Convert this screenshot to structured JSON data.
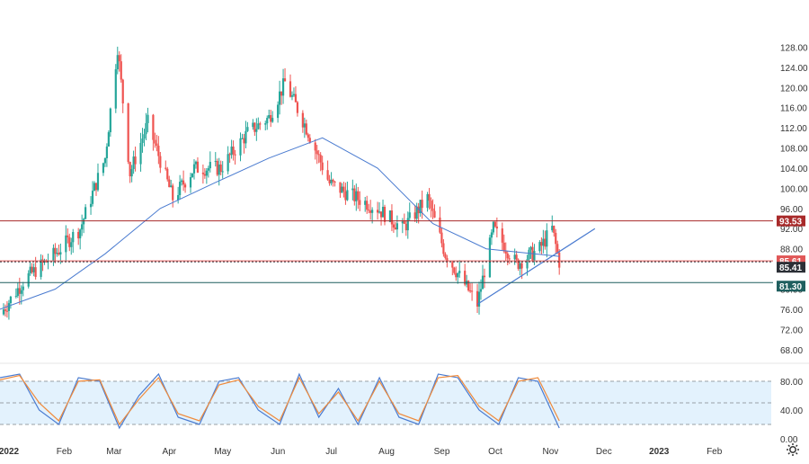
{
  "chart_data": [
    {
      "type": "candlestick",
      "panel": "price",
      "y_axis": {
        "min": 66,
        "max": 132,
        "ticks": [
          68,
          72,
          76,
          80,
          84,
          88,
          92,
          96,
          100,
          104,
          108,
          112,
          116,
          120,
          124,
          128
        ]
      },
      "x_axis_labels": [
        "2022",
        "Feb",
        "Mar",
        "Apr",
        "May",
        "Jun",
        "Jul",
        "Aug",
        "Sep",
        "Oct",
        "Nov",
        "Dec",
        "2023",
        "Feb"
      ],
      "series_close_approx": [
        {
          "date": "2022-01-01",
          "value": 75
        },
        {
          "date": "2022-01-15",
          "value": 82
        },
        {
          "date": "2022-02-01",
          "value": 87
        },
        {
          "date": "2022-02-15",
          "value": 92
        },
        {
          "date": "2022-03-01",
          "value": 106
        },
        {
          "date": "2022-03-08",
          "value": 128
        },
        {
          "date": "2022-03-15",
          "value": 103
        },
        {
          "date": "2022-03-25",
          "value": 113
        },
        {
          "date": "2022-04-08",
          "value": 98
        },
        {
          "date": "2022-04-20",
          "value": 104
        },
        {
          "date": "2022-05-05",
          "value": 104
        },
        {
          "date": "2022-05-20",
          "value": 111
        },
        {
          "date": "2022-06-01",
          "value": 114
        },
        {
          "date": "2022-06-10",
          "value": 121
        },
        {
          "date": "2022-06-22",
          "value": 112
        },
        {
          "date": "2022-07-05",
          "value": 101
        },
        {
          "date": "2022-07-15",
          "value": 99
        },
        {
          "date": "2022-08-01",
          "value": 96
        },
        {
          "date": "2022-08-15",
          "value": 92
        },
        {
          "date": "2022-08-29",
          "value": 98
        },
        {
          "date": "2022-09-08",
          "value": 87
        },
        {
          "date": "2022-09-26",
          "value": 77
        },
        {
          "date": "2022-10-05",
          "value": 92
        },
        {
          "date": "2022-10-18",
          "value": 85
        },
        {
          "date": "2022-10-31",
          "value": 88
        },
        {
          "date": "2022-11-07",
          "value": 92
        },
        {
          "date": "2022-11-11",
          "value": 85.41
        }
      ],
      "moving_average_approx": [
        {
          "date": "2022-01-01",
          "value": 76
        },
        {
          "date": "2022-02-01",
          "value": 80
        },
        {
          "date": "2022-03-01",
          "value": 87
        },
        {
          "date": "2022-04-01",
          "value": 96
        },
        {
          "date": "2022-05-01",
          "value": 101
        },
        {
          "date": "2022-06-01",
          "value": 106
        },
        {
          "date": "2022-07-01",
          "value": 110
        },
        {
          "date": "2022-08-01",
          "value": 104
        },
        {
          "date": "2022-09-01",
          "value": 93
        },
        {
          "date": "2022-10-01",
          "value": 88
        },
        {
          "date": "2022-11-11",
          "value": 86.5
        }
      ],
      "horizontal_levels": [
        {
          "value": 93.53,
          "label": "93.53",
          "color": "#a82a2a"
        },
        {
          "value": 85.61,
          "label": "85.61",
          "color": "#e05757"
        },
        {
          "value": 85.41,
          "label": "85.41",
          "color": "#2b2f36"
        },
        {
          "value": 81.3,
          "label": "81.30",
          "color": "#1f5f5f"
        }
      ],
      "trendline": {
        "from": {
          "date": "2022-09-26",
          "value": 77
        },
        "to": {
          "date": "2022-12-01",
          "value": 92
        }
      },
      "colors": {
        "up": "#26a69a",
        "down": "#ef5350",
        "ma": "#4a7bd0"
      },
      "grid": false
    },
    {
      "type": "line",
      "panel": "stochastic",
      "y_axis": {
        "min": 0,
        "max": 100,
        "ticks": [
          "80.00",
          "40.00",
          "0.00"
        ]
      },
      "bands": {
        "upper": 80,
        "middle": 50,
        "lower": 20
      },
      "series": [
        {
          "color": "#4a7bd0",
          "values": [
            85,
            90,
            40,
            20,
            85,
            80,
            15,
            60,
            90,
            30,
            20,
            80,
            85,
            40,
            20,
            90,
            30,
            70,
            20,
            85,
            30,
            20,
            90,
            85,
            40,
            20,
            85,
            80,
            15
          ]
        },
        {
          "color": "#f08a3a",
          "values": [
            82,
            88,
            50,
            25,
            80,
            82,
            20,
            55,
            85,
            35,
            25,
            75,
            82,
            45,
            25,
            85,
            35,
            65,
            25,
            80,
            35,
            25,
            85,
            88,
            45,
            25,
            80,
            85,
            25
          ]
        }
      ],
      "colors": {
        "band_fill": "#e3f2fd"
      }
    }
  ]
}
